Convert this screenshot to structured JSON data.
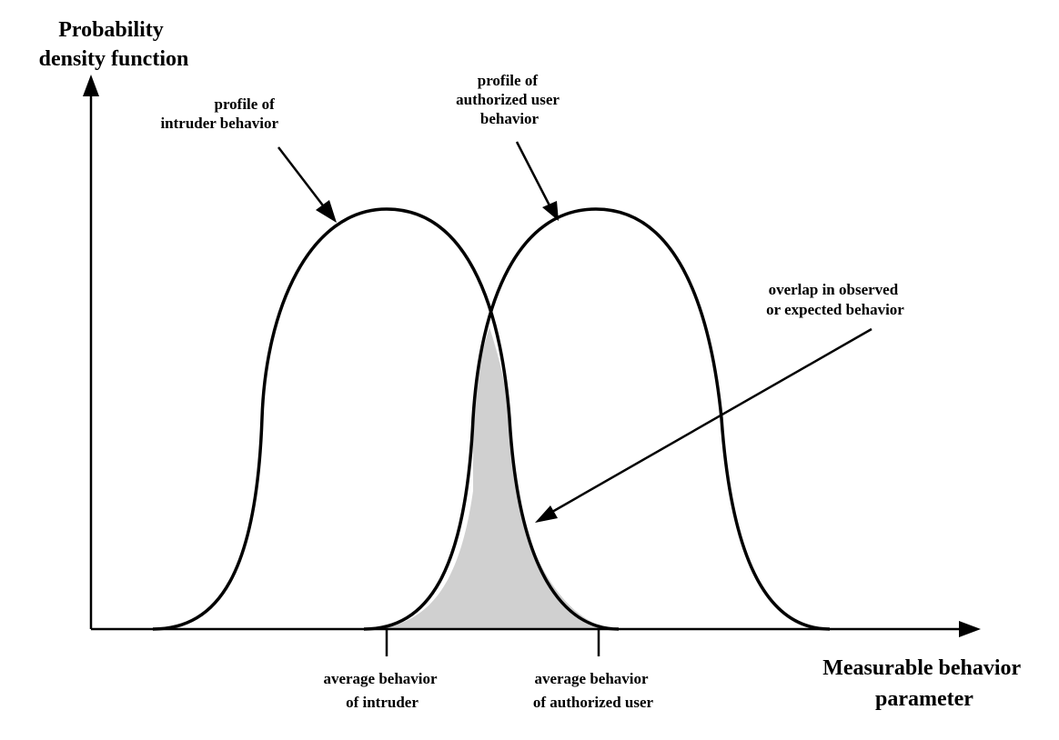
{
  "diagram": {
    "y_axis_label": [
      "Probability",
      "density function"
    ],
    "x_axis_label": [
      "Measurable behavior",
      "parameter"
    ],
    "intruder_profile_label": [
      "profile of",
      "intruder behavior"
    ],
    "authorized_profile_label": [
      "profile of",
      "authorized user",
      "behavior"
    ],
    "overlap_label": [
      "overlap in observed",
      "or expected behavior"
    ],
    "intruder_average_label": [
      "average behavior",
      "of intruder"
    ],
    "authorized_average_label": [
      "average behavior",
      "of authorized user"
    ],
    "overlap_fill_color": "#d0d0d0",
    "line_color": "#000000"
  }
}
